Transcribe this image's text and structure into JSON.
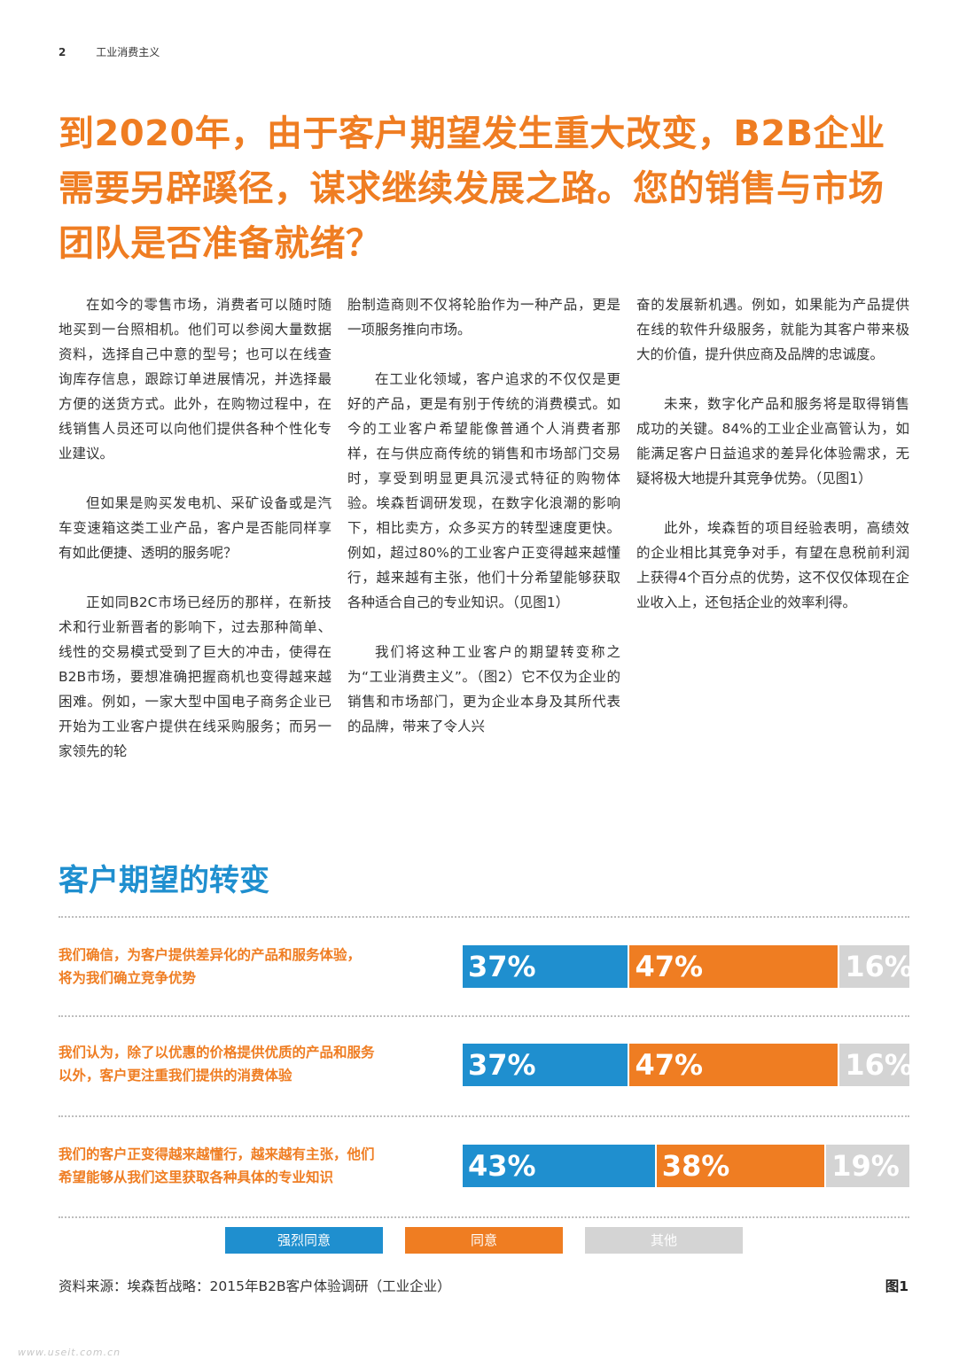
{
  "header": {
    "page_number": "2",
    "title": "工业消费主义"
  },
  "headline": "到2020年，由于客户期望发生重大改变，B2B企业需要另辟蹊径，谋求继续发展之路。您的销售与市场团队是否准备就绪？",
  "columns": {
    "col1": [
      "在如今的零售市场，消费者可以随时随地买到一台照相机。他们可以参阅大量数据资料，选择自己中意的型号；也可以在线查询库存信息，跟踪订单进展情况，并选择最方便的送货方式。此外，在购物过程中，在线销售人员还可以向他们提供各种个性化专业建议。",
      "但如果是购买发电机、采矿设备或是汽车变速箱这类工业产品，客户是否能同样享有如此便捷、透明的服务呢？",
      "正如同B2C市场已经历的那样，在新技术和行业新晋者的影响下，过去那种简单、线性的交易模式受到了巨大的冲击，使得在B2B市场，要想准确把握商机也变得越来越困难。例如，一家大型中国电子商务企业已开始为工业客户提供在线采购服务；而另一家领先的轮"
    ],
    "col2": [
      "胎制造商则不仅将轮胎作为一种产品，更是一项服务推向市场。",
      "在工业化领域，客户追求的不仅仅是更好的产品，更是有别于传统的消费模式。如今的工业客户希望能像普通个人消费者那样，在与供应商传统的销售和市场部门交易时，享受到明显更具沉浸式特征的购物体验。埃森哲调研发现，在数字化浪潮的影响下，相比卖方，众多买方的转型速度更快。例如，超过80%的工业客户正变得越来越懂行，越来越有主张，他们十分希望能够获取各种适合自己的专业知识。（见图1）",
      "我们将这种工业客户的期望转变称之为“工业消费主义”。（图2）它不仅为企业的销售和市场部门，更为企业本身及其所代表的品牌，带来了令人兴"
    ],
    "col3": [
      "奋的发展新机遇。例如，如果能为产品提供在线的软件升级服务，就能为其客户带来极大的价值，提升供应商及品牌的忠诚度。",
      "未来，数字化产品和服务将是取得销售成功的关键。84%的工业企业高管认为，如能满足客户日益追求的差异化体验需求，无疑将极大地提升其竞争优势。（见图1）",
      "此外，埃森哲的项目经验表明，高绩效的企业相比其竞争对手，有望在息税前利润上获得4个百分点的优势，这不仅仅体现在企业收入上，还包括企业的效率利得。"
    ]
  },
  "section_title": "客户期望的转变",
  "colors": {
    "strongly_agree": "#1f8fcf",
    "agree": "#ef7d22",
    "other": "#d4d4d4",
    "headline": "#ef7d22"
  },
  "chart_data": {
    "type": "bar",
    "orientation": "horizontal",
    "stacked": true,
    "categories": [
      "我们确信，为客户提供差异化的产品和服务体验，将为我们确立竞争优势",
      "我们认为，除了以优惠的价格提供优质的产品和服务以外，客户更注重我们提供的消费体验",
      "我们的客户正变得越来越懂行，越来越有主张，他们希望能够从我们这里获取各种具体的专业知识"
    ],
    "category_lines": [
      [
        "我们确信，为客户提供差异化的产品和服务体验，",
        "将为我们确立竞争优势"
      ],
      [
        "我们认为，除了以优惠的价格提供优质的产品和服务",
        "以外，客户更注重我们提供的消费体验"
      ],
      [
        "我们的客户正变得越来越懂行，越来越有主张，他们",
        "希望能够从我们这里获取各种具体的专业知识"
      ]
    ],
    "series": [
      {
        "name": "强烈同意",
        "values": [
          37,
          37,
          43
        ],
        "labels": [
          "37%",
          "37%",
          "43%"
        ]
      },
      {
        "name": "同意",
        "values": [
          47,
          47,
          38
        ],
        "labels": [
          "47%",
          "47%",
          "38%"
        ]
      },
      {
        "name": "其他",
        "values": [
          16,
          16,
          19
        ],
        "labels": [
          "16%",
          "16%",
          "19%"
        ]
      }
    ],
    "unit": "%",
    "legend_position": "bottom"
  },
  "footer": {
    "source": "资料来源：埃森哲战略：2015年B2B客户体验调研（工业企业）",
    "figure_label": "图1"
  },
  "watermark": "www.useit.com.cn"
}
